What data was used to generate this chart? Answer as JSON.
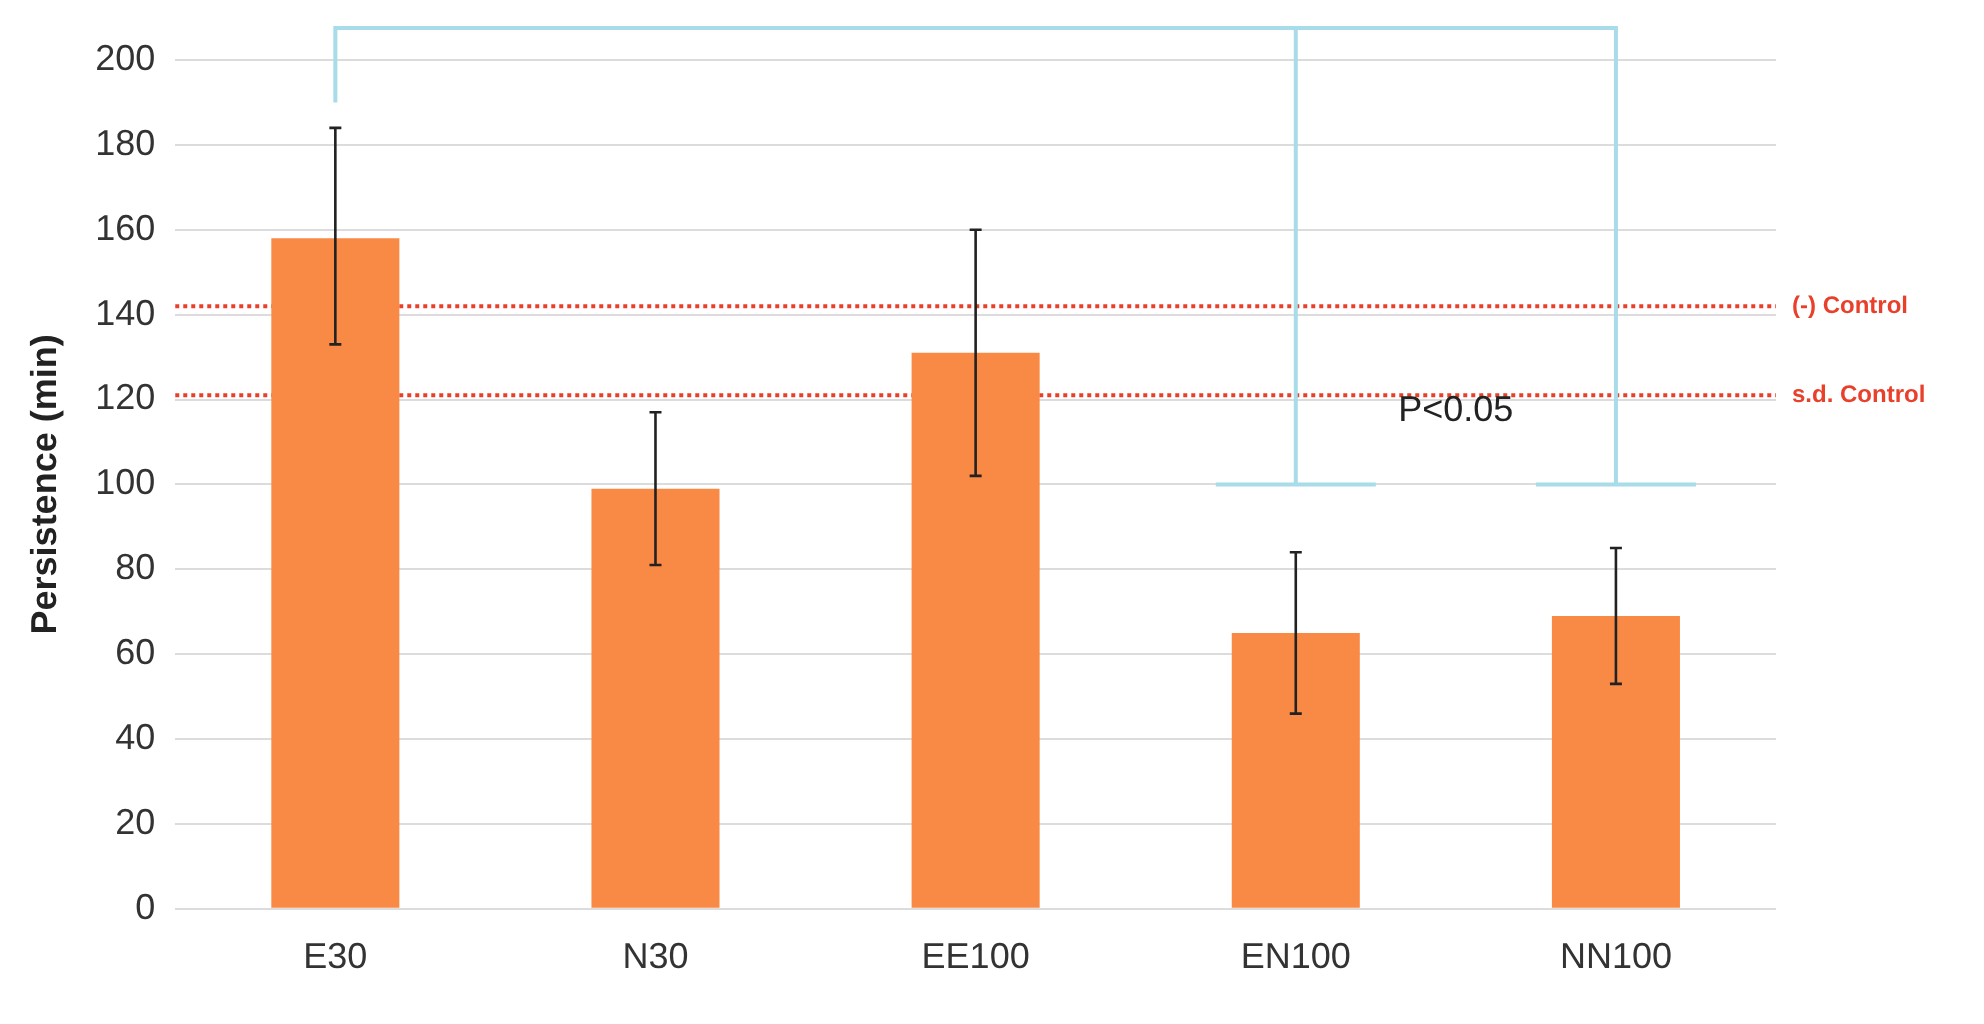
{
  "chart_data": {
    "type": "bar",
    "ylabel": "Persistence (min)",
    "categories": [
      "E30",
      "N30",
      "EE100",
      "EN100",
      "NN100"
    ],
    "series": [
      {
        "color": "#f98a45",
        "values": [
          158,
          99,
          131,
          65,
          69
        ],
        "errors": [
          [
            133,
            184
          ],
          [
            81,
            117
          ],
          [
            102,
            160
          ],
          [
            46,
            84
          ],
          [
            53,
            85
          ]
        ]
      }
    ],
    "ylim": [
      0,
      200
    ],
    "yticks": [
      0,
      20,
      40,
      60,
      80,
      100,
      120,
      140,
      160,
      180,
      200
    ],
    "grid": "y",
    "legend": false,
    "ref_lines": [
      {
        "axis": "y",
        "value": 142,
        "label": "(-) Control",
        "color": "#e8402a",
        "line_style": "dotted"
      },
      {
        "axis": "y",
        "value": 121,
        "label": "s.d. Control",
        "color": "#e8402a",
        "line_style": "dotted"
      }
    ],
    "annotations": [
      "P<0.05"
    ]
  }
}
